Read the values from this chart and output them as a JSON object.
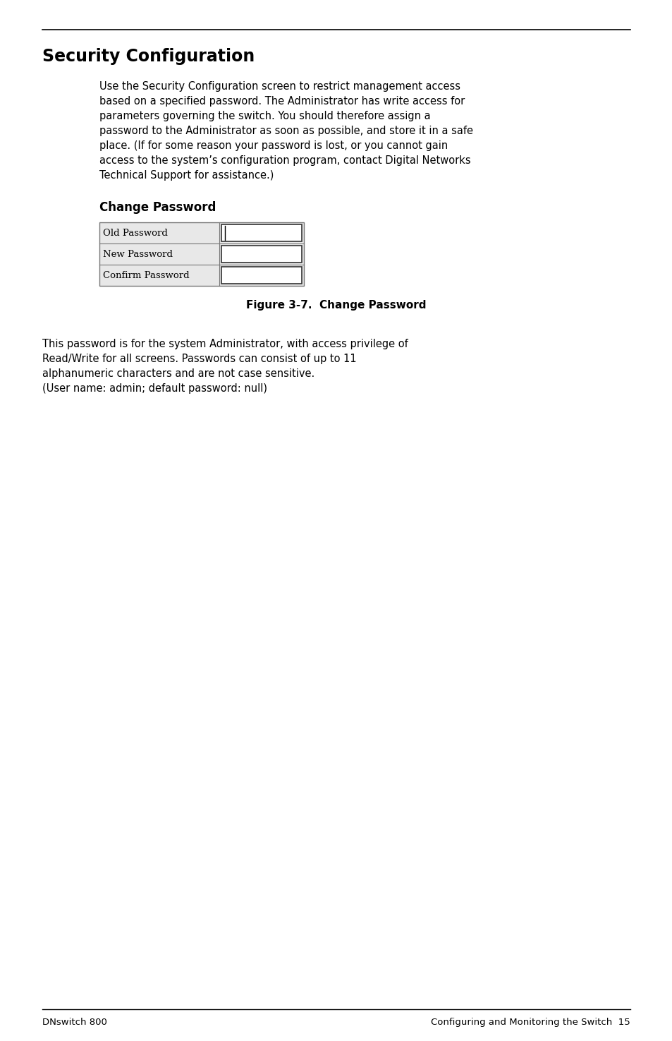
{
  "title": "Security Configuration",
  "section_heading": "Change Password",
  "figure_caption": "Figure 3-7.  Change Password",
  "body_text": "Use the Security Configuration screen to restrict management access\nbased on a specified password. The Administrator has write access for\nparameters governing the switch. You should therefore assign a\npassword to the Administrator as soon as possible, and store it in a safe\nplace. (If for some reason your password is lost, or you cannot gain\naccess to the system’s configuration program, contact Digital Networks\nTechnical Support for assistance.)",
  "bottom_text": "This password is for the system Administrator, with access privilege of\nRead/Write for all screens. Passwords can consist of up to 11\nalphanumeric characters and are not case sensitive.\n(User name: admin; default password: null)",
  "footer_left": "DNswitch 800",
  "footer_right": "Configuring and Monitoring the Switch  15",
  "table_rows": [
    "Old Password",
    "New Password",
    "Confirm Password"
  ],
  "bg_color": "#ffffff",
  "text_color": "#000000",
  "line_color": "#000000"
}
